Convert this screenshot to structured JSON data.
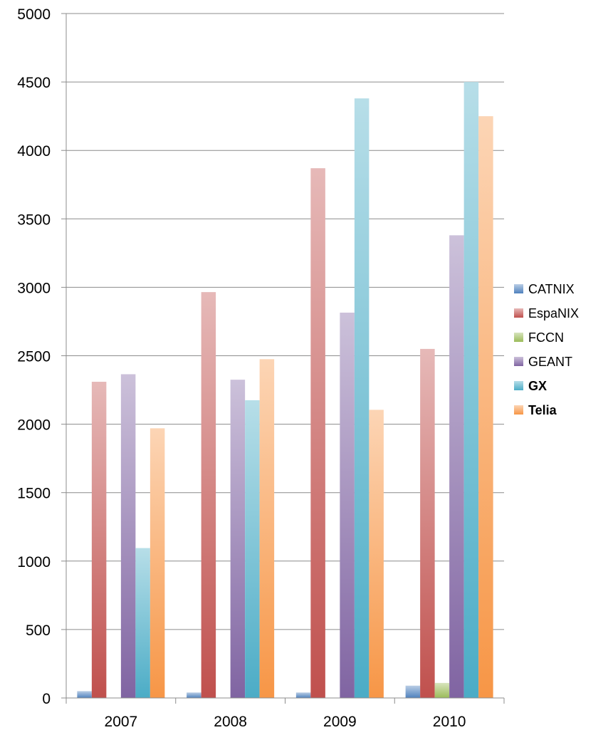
{
  "chart_data": {
    "type": "bar",
    "title": "",
    "xlabel": "",
    "ylabel": "",
    "ylim": [
      0,
      5000
    ],
    "yticks": [
      0,
      500,
      1000,
      1500,
      2000,
      2500,
      3000,
      3500,
      4000,
      4500,
      5000
    ],
    "grid": true,
    "legend_position": "right",
    "categories": [
      "2007",
      "2008",
      "2009",
      "2010"
    ],
    "series": [
      {
        "name": "CATNIX",
        "color": "#4f81bd",
        "bold": false,
        "values": [
          50,
          40,
          40,
          90
        ]
      },
      {
        "name": "EspaNIX",
        "color": "#c0504d",
        "bold": false,
        "values": [
          2310,
          2965,
          3870,
          2550
        ]
      },
      {
        "name": "FCCN",
        "color": "#9bbb59",
        "bold": false,
        "values": [
          0,
          0,
          0,
          110
        ]
      },
      {
        "name": "GEANT",
        "color": "#8064a2",
        "bold": false,
        "values": [
          2365,
          2325,
          2815,
          3380
        ]
      },
      {
        "name": "GX",
        "color": "#4bacc6",
        "bold": true,
        "values": [
          1095,
          2175,
          4380,
          4500
        ]
      },
      {
        "name": "Telia",
        "color": "#f79646",
        "bold": true,
        "values": [
          1970,
          2475,
          2105,
          4250
        ]
      }
    ]
  }
}
